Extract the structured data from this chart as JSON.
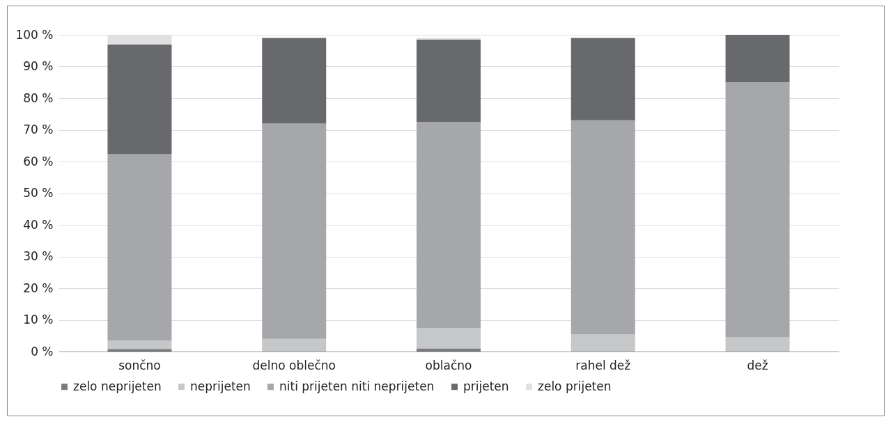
{
  "chart_data": {
    "type": "bar",
    "stacked": true,
    "categories": [
      "sončno",
      "delno oblečno",
      "oblačno",
      "rahel dež",
      "dež"
    ],
    "series": [
      {
        "name": "zelo neprijeten",
        "color": "#7a7b7e",
        "values": [
          0.8,
          0,
          1,
          0,
          0
        ]
      },
      {
        "name": "neprijeten",
        "color": "#c6c7c9",
        "values": [
          2.7,
          4,
          6.5,
          5.5,
          4.5
        ]
      },
      {
        "name": "niti prijeten niti neprijeten",
        "color": "#a6a7aa",
        "values": [
          58.8,
          68,
          65,
          67.5,
          80.5
        ]
      },
      {
        "name": "prijeten",
        "color": "#68696c",
        "values": [
          34.6,
          27,
          26,
          26,
          15
        ]
      },
      {
        "name": "zelo prijeten",
        "color": "#e0e0e0",
        "values": [
          3.1,
          0,
          0.5,
          0,
          0
        ]
      }
    ],
    "ylim": [
      0,
      100
    ],
    "yticks": [
      {
        "value": 0,
        "label": "0 %"
      },
      {
        "value": 10,
        "label": "10 %"
      },
      {
        "value": 20,
        "label": "20 %"
      },
      {
        "value": 30,
        "label": "30 %"
      },
      {
        "value": 40,
        "label": "40 %"
      },
      {
        "value": 50,
        "label": "50 %"
      },
      {
        "value": 60,
        "label": "60 %"
      },
      {
        "value": 70,
        "label": "70 %"
      },
      {
        "value": 80,
        "label": "80 %"
      },
      {
        "value": 90,
        "label": "90 %"
      },
      {
        "value": 100,
        "label": "100 %"
      }
    ],
    "grid": "y",
    "legend": "bottom"
  }
}
